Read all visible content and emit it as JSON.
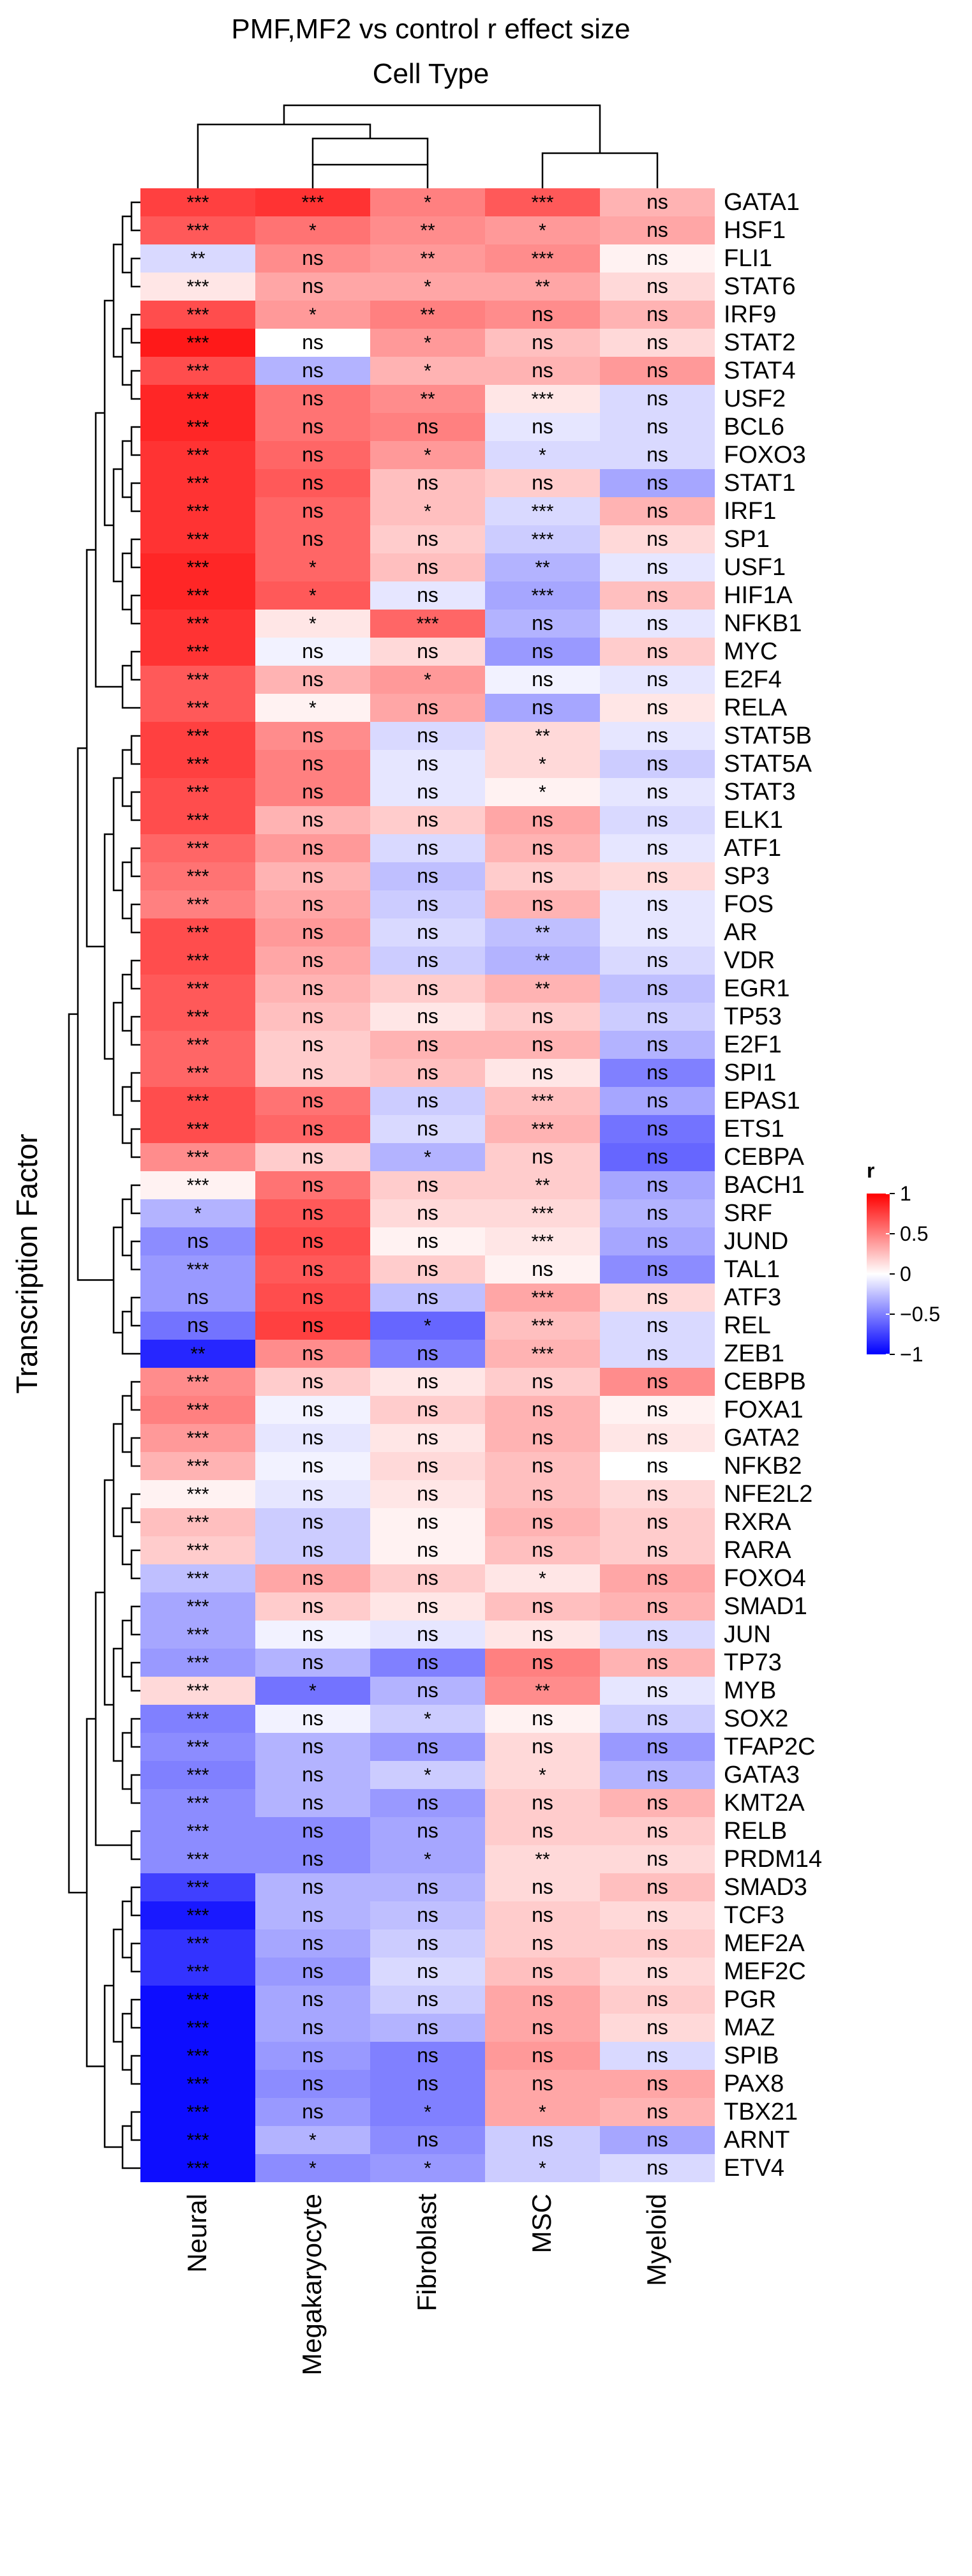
{
  "chart_data": {
    "type": "heatmap",
    "title": "PMF,MF2 vs control  r effect size",
    "column_title": "Cell Type",
    "row_title": "Transcription Factor",
    "columns": [
      "Neural",
      "Megakaryocyte",
      "Fibroblast",
      "MSC",
      "Myeloid"
    ],
    "rows": [
      "GATA1",
      "HSF1",
      "FLI1",
      "STAT6",
      "IRF9",
      "STAT2",
      "STAT4",
      "USF2",
      "BCL6",
      "FOXO3",
      "STAT1",
      "IRF1",
      "SP1",
      "USF1",
      "HIF1A",
      "NFKB1",
      "MYC",
      "E2F4",
      "RELA",
      "STAT5B",
      "STAT5A",
      "STAT3",
      "ELK1",
      "ATF1",
      "SP3",
      "FOS",
      "AR",
      "VDR",
      "EGR1",
      "TP53",
      "E2F1",
      "SPI1",
      "EPAS1",
      "ETS1",
      "CEBPA",
      "BACH1",
      "SRF",
      "JUND",
      "TAL1",
      "ATF3",
      "REL",
      "ZEB1",
      "CEBPB",
      "FOXA1",
      "GATA2",
      "NFKB2",
      "NFE2L2",
      "RXRA",
      "RARA",
      "FOXO4",
      "SMAD1",
      "JUN",
      "TP73",
      "MYB",
      "SOX2",
      "TFAP2C",
      "GATA3",
      "KMT2A",
      "RELB",
      "PRDM14",
      "SMAD3",
      "TCF3",
      "MEF2A",
      "MEF2C",
      "PGR",
      "MAZ",
      "SPIB",
      "PAX8",
      "TBX21",
      "ARNT",
      "ETV4"
    ],
    "values": [
      [
        0.75,
        0.8,
        0.5,
        0.65,
        0.3
      ],
      [
        0.65,
        0.55,
        0.45,
        0.4,
        0.35
      ],
      [
        -0.15,
        0.45,
        0.4,
        0.45,
        0.05
      ],
      [
        0.1,
        0.35,
        0.35,
        0.35,
        0.15
      ],
      [
        0.7,
        0.4,
        0.5,
        0.45,
        0.3
      ],
      [
        0.9,
        0.0,
        0.4,
        0.25,
        0.15
      ],
      [
        0.7,
        -0.3,
        0.3,
        0.3,
        0.4
      ],
      [
        0.85,
        0.55,
        0.45,
        0.1,
        -0.15
      ],
      [
        0.85,
        0.55,
        0.5,
        -0.1,
        -0.15
      ],
      [
        0.8,
        0.6,
        0.4,
        -0.15,
        -0.15
      ],
      [
        0.8,
        0.65,
        0.25,
        0.2,
        -0.35
      ],
      [
        0.8,
        0.6,
        0.25,
        -0.15,
        0.3
      ],
      [
        0.8,
        0.6,
        0.2,
        -0.2,
        0.15
      ],
      [
        0.85,
        0.6,
        0.25,
        -0.3,
        -0.1
      ],
      [
        0.85,
        0.65,
        -0.1,
        -0.35,
        0.25
      ],
      [
        0.8,
        0.1,
        0.6,
        -0.3,
        -0.1
      ],
      [
        0.8,
        -0.05,
        0.15,
        -0.4,
        0.2
      ],
      [
        0.65,
        0.3,
        0.4,
        -0.05,
        -0.1
      ],
      [
        0.65,
        0.05,
        0.35,
        -0.35,
        0.1
      ],
      [
        0.75,
        0.45,
        -0.15,
        0.15,
        -0.1
      ],
      [
        0.75,
        0.5,
        -0.1,
        0.15,
        -0.2
      ],
      [
        0.7,
        0.5,
        -0.1,
        0.05,
        -0.1
      ],
      [
        0.7,
        0.3,
        0.2,
        0.35,
        -0.15
      ],
      [
        0.6,
        0.4,
        -0.15,
        0.3,
        -0.1
      ],
      [
        0.55,
        0.3,
        -0.25,
        0.2,
        0.15
      ],
      [
        0.5,
        0.35,
        -0.2,
        0.3,
        -0.1
      ],
      [
        0.7,
        0.4,
        -0.15,
        -0.25,
        -0.1
      ],
      [
        0.7,
        0.35,
        -0.2,
        -0.3,
        -0.15
      ],
      [
        0.65,
        0.3,
        0.2,
        0.3,
        -0.25
      ],
      [
        0.65,
        0.25,
        0.1,
        0.2,
        -0.2
      ],
      [
        0.6,
        0.2,
        0.3,
        0.3,
        -0.3
      ],
      [
        0.6,
        0.2,
        0.25,
        0.1,
        -0.5
      ],
      [
        0.7,
        0.55,
        -0.2,
        0.25,
        -0.35
      ],
      [
        0.7,
        0.6,
        -0.15,
        0.3,
        -0.55
      ],
      [
        0.45,
        0.2,
        -0.3,
        0.2,
        -0.6
      ],
      [
        0.05,
        0.55,
        0.2,
        0.2,
        -0.35
      ],
      [
        -0.3,
        0.65,
        0.15,
        0.15,
        -0.3
      ],
      [
        -0.45,
        0.7,
        0.05,
        0.1,
        -0.35
      ],
      [
        -0.4,
        0.65,
        0.2,
        0.05,
        -0.45
      ],
      [
        -0.4,
        0.7,
        -0.25,
        0.35,
        0.15
      ],
      [
        -0.55,
        0.75,
        -0.6,
        0.25,
        -0.15
      ],
      [
        -0.85,
        0.45,
        -0.5,
        0.3,
        -0.15
      ],
      [
        0.45,
        0.2,
        0.1,
        0.2,
        0.45
      ],
      [
        0.5,
        -0.05,
        0.2,
        0.3,
        0.05
      ],
      [
        0.4,
        -0.1,
        0.1,
        0.3,
        0.1
      ],
      [
        0.3,
        -0.05,
        0.15,
        0.25,
        0.0
      ],
      [
        0.05,
        -0.1,
        0.1,
        0.25,
        0.15
      ],
      [
        0.25,
        -0.2,
        0.05,
        0.3,
        0.2
      ],
      [
        0.2,
        -0.2,
        0.05,
        0.25,
        0.2
      ],
      [
        -0.25,
        0.35,
        0.2,
        0.1,
        0.35
      ],
      [
        -0.35,
        0.2,
        0.1,
        0.25,
        0.3
      ],
      [
        -0.35,
        -0.05,
        -0.1,
        0.1,
        -0.15
      ],
      [
        -0.4,
        -0.3,
        -0.5,
        0.5,
        0.3
      ],
      [
        0.15,
        -0.55,
        -0.3,
        0.45,
        -0.1
      ],
      [
        -0.5,
        -0.05,
        -0.2,
        0.05,
        -0.2
      ],
      [
        -0.45,
        -0.3,
        -0.4,
        0.15,
        -0.4
      ],
      [
        -0.5,
        -0.3,
        -0.2,
        0.15,
        -0.3
      ],
      [
        -0.45,
        -0.3,
        -0.4,
        0.2,
        0.3
      ],
      [
        -0.45,
        -0.45,
        -0.35,
        0.2,
        0.2
      ],
      [
        -0.45,
        -0.45,
        -0.35,
        0.15,
        0.15
      ],
      [
        -0.75,
        -0.3,
        -0.3,
        0.15,
        0.25
      ],
      [
        -0.9,
        -0.3,
        -0.25,
        0.2,
        0.15
      ],
      [
        -0.8,
        -0.35,
        -0.2,
        0.2,
        0.2
      ],
      [
        -0.8,
        -0.4,
        -0.15,
        0.25,
        0.15
      ],
      [
        -0.95,
        -0.35,
        -0.2,
        0.35,
        0.2
      ],
      [
        -0.95,
        -0.35,
        -0.3,
        0.35,
        0.15
      ],
      [
        -0.95,
        -0.4,
        -0.5,
        0.4,
        -0.15
      ],
      [
        -0.95,
        -0.45,
        -0.5,
        0.35,
        0.35
      ],
      [
        -0.95,
        -0.4,
        -0.5,
        0.35,
        0.3
      ],
      [
        -0.95,
        -0.3,
        -0.45,
        -0.2,
        -0.35
      ],
      [
        -0.95,
        -0.45,
        -0.4,
        -0.2,
        -0.15
      ]
    ],
    "labels": [
      [
        "***",
        "***",
        "*",
        "***",
        "ns"
      ],
      [
        "***",
        "*",
        "**",
        "*",
        "ns"
      ],
      [
        "**",
        "ns",
        "**",
        "***",
        "ns"
      ],
      [
        "***",
        "ns",
        "*",
        "**",
        "ns"
      ],
      [
        "***",
        "*",
        "**",
        "ns",
        "ns"
      ],
      [
        "***",
        "ns",
        "*",
        "ns",
        "ns"
      ],
      [
        "***",
        "ns",
        "*",
        "ns",
        "ns"
      ],
      [
        "***",
        "ns",
        "**",
        "***",
        "ns"
      ],
      [
        "***",
        "ns",
        "ns",
        "ns",
        "ns"
      ],
      [
        "***",
        "ns",
        "*",
        "*",
        "ns"
      ],
      [
        "***",
        "ns",
        "ns",
        "ns",
        "ns"
      ],
      [
        "***",
        "ns",
        "*",
        "***",
        "ns"
      ],
      [
        "***",
        "ns",
        "ns",
        "***",
        "ns"
      ],
      [
        "***",
        "*",
        "ns",
        "**",
        "ns"
      ],
      [
        "***",
        "*",
        "ns",
        "***",
        "ns"
      ],
      [
        "***",
        "*",
        "***",
        "ns",
        "ns"
      ],
      [
        "***",
        "ns",
        "ns",
        "ns",
        "ns"
      ],
      [
        "***",
        "ns",
        "*",
        "ns",
        "ns"
      ],
      [
        "***",
        "*",
        "ns",
        "ns",
        "ns"
      ],
      [
        "***",
        "ns",
        "ns",
        "**",
        "ns"
      ],
      [
        "***",
        "ns",
        "ns",
        "*",
        "ns"
      ],
      [
        "***",
        "ns",
        "ns",
        "*",
        "ns"
      ],
      [
        "***",
        "ns",
        "ns",
        "ns",
        "ns"
      ],
      [
        "***",
        "ns",
        "ns",
        "ns",
        "ns"
      ],
      [
        "***",
        "ns",
        "ns",
        "ns",
        "ns"
      ],
      [
        "***",
        "ns",
        "ns",
        "ns",
        "ns"
      ],
      [
        "***",
        "ns",
        "ns",
        "**",
        "ns"
      ],
      [
        "***",
        "ns",
        "ns",
        "**",
        "ns"
      ],
      [
        "***",
        "ns",
        "ns",
        "**",
        "ns"
      ],
      [
        "***",
        "ns",
        "ns",
        "ns",
        "ns"
      ],
      [
        "***",
        "ns",
        "ns",
        "ns",
        "ns"
      ],
      [
        "***",
        "ns",
        "ns",
        "ns",
        "ns"
      ],
      [
        "***",
        "ns",
        "ns",
        "***",
        "ns"
      ],
      [
        "***",
        "ns",
        "ns",
        "***",
        "ns"
      ],
      [
        "***",
        "ns",
        "*",
        "ns",
        "ns"
      ],
      [
        "***",
        "ns",
        "ns",
        "**",
        "ns"
      ],
      [
        "*",
        "ns",
        "ns",
        "***",
        "ns"
      ],
      [
        "ns",
        "ns",
        "ns",
        "***",
        "ns"
      ],
      [
        "***",
        "ns",
        "ns",
        "ns",
        "ns"
      ],
      [
        "ns",
        "ns",
        "ns",
        "***",
        "ns"
      ],
      [
        "ns",
        "ns",
        "*",
        "***",
        "ns"
      ],
      [
        "**",
        "ns",
        "ns",
        "***",
        "ns"
      ],
      [
        "***",
        "ns",
        "ns",
        "ns",
        "ns"
      ],
      [
        "***",
        "ns",
        "ns",
        "ns",
        "ns"
      ],
      [
        "***",
        "ns",
        "ns",
        "ns",
        "ns"
      ],
      [
        "***",
        "ns",
        "ns",
        "ns",
        "ns"
      ],
      [
        "***",
        "ns",
        "ns",
        "ns",
        "ns"
      ],
      [
        "***",
        "ns",
        "ns",
        "ns",
        "ns"
      ],
      [
        "***",
        "ns",
        "ns",
        "ns",
        "ns"
      ],
      [
        "***",
        "ns",
        "ns",
        "*",
        "ns"
      ],
      [
        "***",
        "ns",
        "ns",
        "ns",
        "ns"
      ],
      [
        "***",
        "ns",
        "ns",
        "ns",
        "ns"
      ],
      [
        "***",
        "ns",
        "ns",
        "ns",
        "ns"
      ],
      [
        "***",
        "*",
        "ns",
        "**",
        "ns"
      ],
      [
        "***",
        "ns",
        "*",
        "ns",
        "ns"
      ],
      [
        "***",
        "ns",
        "ns",
        "ns",
        "ns"
      ],
      [
        "***",
        "ns",
        "*",
        "*",
        "ns"
      ],
      [
        "***",
        "ns",
        "ns",
        "ns",
        "ns"
      ],
      [
        "***",
        "ns",
        "ns",
        "ns",
        "ns"
      ],
      [
        "***",
        "ns",
        "*",
        "**",
        "ns"
      ],
      [
        "***",
        "ns",
        "ns",
        "ns",
        "ns"
      ],
      [
        "***",
        "ns",
        "ns",
        "ns",
        "ns"
      ],
      [
        "***",
        "ns",
        "ns",
        "ns",
        "ns"
      ],
      [
        "***",
        "ns",
        "ns",
        "ns",
        "ns"
      ],
      [
        "***",
        "ns",
        "ns",
        "ns",
        "ns"
      ],
      [
        "***",
        "ns",
        "ns",
        "ns",
        "ns"
      ],
      [
        "***",
        "ns",
        "ns",
        "ns",
        "ns"
      ],
      [
        "***",
        "ns",
        "ns",
        "ns",
        "ns"
      ],
      [
        "***",
        "ns",
        "*",
        "*",
        "ns"
      ],
      [
        "***",
        "*",
        "ns",
        "ns",
        "ns"
      ],
      [
        "***",
        "*",
        "*",
        "*",
        "ns"
      ]
    ],
    "legend": {
      "title": "r",
      "ticks": [
        1,
        0.5,
        0,
        -0.5,
        -1
      ],
      "tick_labels": [
        "1",
        "0.5",
        "0",
        "−0.5",
        "−1"
      ],
      "range": [
        -1,
        1
      ]
    },
    "colors": {
      "low": "#0000ff",
      "mid": "#ffffff",
      "high": "#ff0000"
    }
  }
}
